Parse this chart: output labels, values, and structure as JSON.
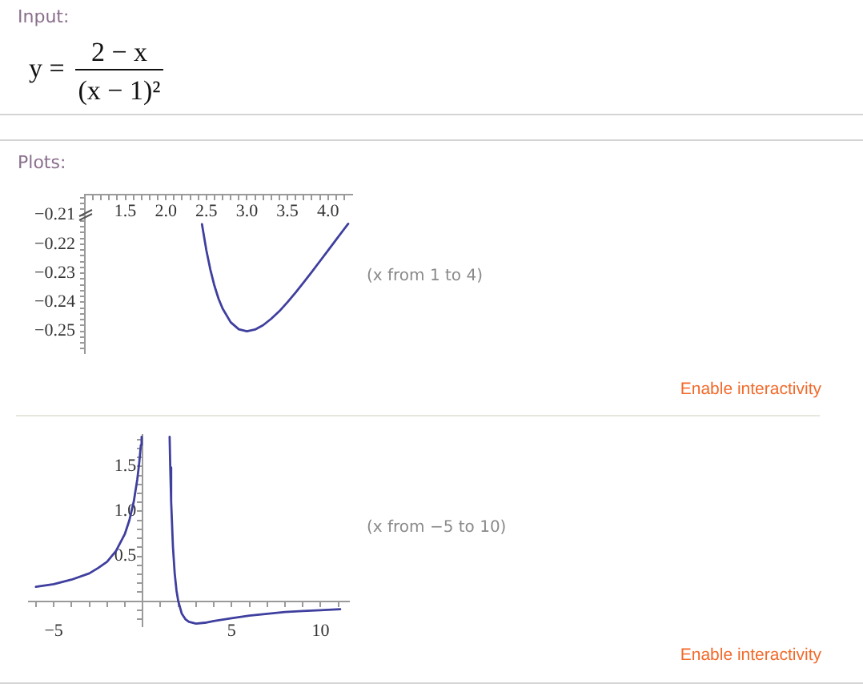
{
  "chart_data": [
    {
      "type": "line",
      "annotations": [
        "Input:",
        "y =",
        "2 − x",
        "(x − 1)²",
        "Plots:",
        "(x from 1 to 4)",
        "Enable interactivity"
      ],
      "x": [
        2.445,
        2.5,
        2.55,
        2.6,
        2.65,
        2.7,
        2.8,
        2.9,
        3.0,
        3.1,
        3.2,
        3.3,
        3.4,
        3.5,
        3.6,
        3.7,
        3.8,
        3.9,
        4.0,
        4.1,
        4.2,
        4.25
      ],
      "values": [
        -0.2131,
        -0.2222,
        -0.2289,
        -0.2344,
        -0.2388,
        -0.2422,
        -0.2469,
        -0.2493,
        -0.25,
        -0.2494,
        -0.2479,
        -0.2457,
        -0.2431,
        -0.24,
        -0.2367,
        -0.2332,
        -0.2296,
        -0.2259,
        -0.2222,
        -0.2185,
        -0.2148,
        -0.213
      ],
      "color": "#3f3f9f",
      "marker": "none",
      "xlim": [
        1,
        4.3
      ],
      "ylim": [
        -0.2575,
        -0.203
      ],
      "xticks": [
        {
          "value": 1.1,
          "label": null
        },
        {
          "value": 1.2,
          "label": null
        },
        {
          "value": 1.3,
          "label": null
        },
        {
          "value": 1.4,
          "label": null
        },
        1.5,
        {
          "value": 1.6,
          "label": null
        },
        {
          "value": 1.7,
          "label": null
        },
        {
          "value": 1.8,
          "label": null
        },
        {
          "value": 1.9,
          "label": null
        },
        {
          "value": 2,
          "label": "2.0"
        },
        {
          "value": 2.1,
          "label": null
        },
        {
          "value": 2.2,
          "label": null
        },
        {
          "value": 2.3,
          "label": null
        },
        {
          "value": 2.4,
          "label": null
        },
        2.5,
        {
          "value": 2.6,
          "label": null
        },
        {
          "value": 2.7,
          "label": null
        },
        {
          "value": 2.8,
          "label": null
        },
        {
          "value": 2.9,
          "label": null
        },
        {
          "value": 3,
          "label": "3.0"
        },
        {
          "value": 3.1,
          "label": null
        },
        {
          "value": 3.2,
          "label": null
        },
        {
          "value": 3.3,
          "label": null
        },
        {
          "value": 3.4,
          "label": null
        },
        3.5,
        {
          "value": 3.6,
          "label": null
        },
        {
          "value": 3.7,
          "label": null
        },
        {
          "value": 3.8,
          "label": null
        },
        {
          "value": 3.9,
          "label": null
        },
        {
          "value": 4,
          "label": "4.0"
        },
        {
          "value": 4.1,
          "label": null
        },
        {
          "value": 4.2,
          "label": null
        }
      ],
      "yticks": [
        {
          "value": -0.204,
          "label": null
        },
        {
          "value": -0.206,
          "label": null
        },
        {
          "value": -0.208,
          "label": null
        },
        {
          "value": -0.21,
          "label": "−0.21"
        },
        {
          "value": -0.212,
          "label": null
        },
        {
          "value": -0.214,
          "label": null
        },
        {
          "value": -0.216,
          "label": null
        },
        {
          "value": -0.218,
          "label": null
        },
        {
          "value": -0.22,
          "label": "−0.22"
        },
        {
          "value": -0.222,
          "label": null
        },
        {
          "value": -0.224,
          "label": null
        },
        {
          "value": -0.226,
          "label": null
        },
        {
          "value": -0.228,
          "label": null
        },
        {
          "value": -0.23,
          "label": "−0.23"
        },
        {
          "value": -0.232,
          "label": null
        },
        {
          "value": -0.234,
          "label": null
        },
        {
          "value": -0.236,
          "label": null
        },
        {
          "value": -0.238,
          "label": null
        },
        {
          "value": -0.24,
          "label": "−0.24"
        },
        {
          "value": -0.242,
          "label": null
        },
        {
          "value": -0.244,
          "label": null
        },
        {
          "value": -0.246,
          "label": null
        },
        {
          "value": -0.248,
          "label": null
        },
        {
          "value": -0.25,
          "label": "−0.25"
        },
        {
          "value": -0.252,
          "label": null
        },
        {
          "value": -0.254,
          "label": null
        },
        {
          "value": -0.256,
          "label": null
        }
      ]
    },
    {
      "type": "line",
      "annotations": [
        "(x from −5 to 10)",
        "Enable interactivity"
      ],
      "x": [
        -6,
        -5,
        -4,
        -3,
        -2.5,
        -2,
        -1.5,
        -1,
        -0.75,
        -0.5,
        -0.3,
        -0.2,
        -0.1,
        -0.06,
        1,
        1.515,
        1.55,
        1.6,
        1.7,
        1.8,
        1.9,
        2,
        2.2,
        2.4,
        2.6,
        3,
        3.5,
        4,
        5,
        6,
        7,
        8,
        9,
        10,
        11.1
      ],
      "values": [
        0.16,
        0.19,
        0.24,
        0.31,
        0.37,
        0.44,
        0.56,
        0.75,
        0.9,
        1.11,
        1.36,
        1.53,
        1.74,
        1.83,
        null,
        1.83,
        1.49,
        1.11,
        0.61,
        0.31,
        0.12,
        0,
        -0.14,
        -0.2,
        -0.23,
        -0.25,
        -0.24,
        -0.22,
        -0.19,
        -0.16,
        -0.14,
        -0.12,
        -0.11,
        -0.1,
        -0.09
      ],
      "color": "#3f3f9f",
      "marker": "none",
      "xlim": [
        -6.4,
        11.6
      ],
      "ylim": [
        -0.28,
        1.85
      ],
      "xticks": [
        {
          "value": -6,
          "label": null
        },
        {
          "value": -5,
          "label": "−5"
        },
        {
          "value": -4,
          "label": null
        },
        {
          "value": -3,
          "label": null
        },
        {
          "value": -2,
          "label": null
        },
        {
          "value": -1,
          "label": null
        },
        {
          "value": 0,
          "label": null
        },
        {
          "value": 1,
          "label": null
        },
        {
          "value": 2,
          "label": null
        },
        {
          "value": 3,
          "label": null
        },
        {
          "value": 4,
          "label": null
        },
        5,
        {
          "value": 6,
          "label": null
        },
        {
          "value": 7,
          "label": null
        },
        {
          "value": 8,
          "label": null
        },
        {
          "value": 9,
          "label": null
        },
        10,
        {
          "value": 11,
          "label": null
        }
      ],
      "yticks": [
        {
          "value": -0.2,
          "label": null
        },
        {
          "value": -0.1,
          "label": null
        },
        {
          "value": 0,
          "label": null
        },
        {
          "value": 0.1,
          "label": null
        },
        {
          "value": 0.2,
          "label": null
        },
        {
          "value": 0.3,
          "label": null
        },
        {
          "value": 0.4,
          "label": null
        },
        0.5,
        {
          "value": 0.6,
          "label": null
        },
        {
          "value": 0.7,
          "label": null
        },
        {
          "value": 0.8,
          "label": null
        },
        {
          "value": 0.9,
          "label": null
        },
        {
          "value": 1,
          "label": "1.0"
        },
        {
          "value": 1.1,
          "label": null
        },
        {
          "value": 1.2,
          "label": null
        },
        {
          "value": 1.3,
          "label": null
        },
        {
          "value": 1.4,
          "label": null
        },
        1.5,
        {
          "value": 1.6,
          "label": null
        },
        {
          "value": 1.7,
          "label": null
        },
        {
          "value": 1.8,
          "label": null
        }
      ]
    }
  ]
}
